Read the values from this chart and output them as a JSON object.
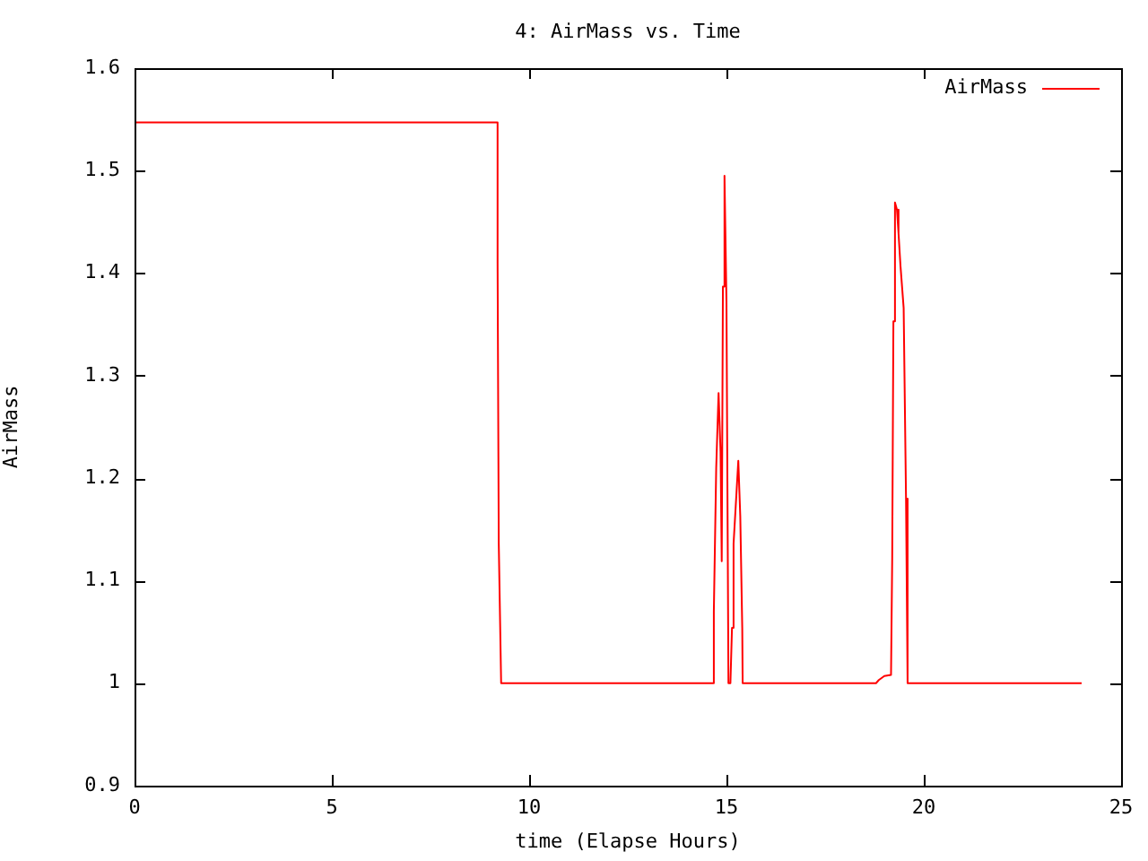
{
  "chart_data": {
    "type": "line",
    "title": "4: AirMass vs. Time",
    "xlabel": "time (Elapse Hours)",
    "ylabel": "AirMass",
    "xlim": [
      0,
      25
    ],
    "xticks": [
      0,
      5,
      10,
      15,
      20,
      25
    ],
    "ylim": [
      0.9,
      1.6
    ],
    "yticks": [
      0.9,
      1,
      1.1,
      1.2,
      1.3,
      1.4,
      1.5,
      1.6
    ],
    "grid": false,
    "legend": "top right",
    "marker": "none",
    "line_style": "solid",
    "series": [
      {
        "name": "AirMass",
        "color": "#ff0000",
        "x": [
          0,
          9.2,
          9.2,
          9.23,
          9.29,
          14.67,
          14.68,
          14.74,
          14.8,
          14.85,
          14.88,
          14.91,
          14.95,
          15.0,
          15.05,
          15.1,
          15.14,
          15.18,
          15.26,
          15.3,
          15.35,
          15.4,
          15.41,
          18.79,
          18.86,
          19.0,
          19.17,
          19.2,
          19.23,
          19.27,
          19.32,
          19.36,
          19.41,
          19.49,
          19.55,
          19.59,
          24
        ],
        "values": [
          1.547,
          1.547,
          1.41,
          1.136,
          1.0,
          1.0,
          1.07,
          1.21,
          1.283,
          1.226,
          1.119,
          1.387,
          1.495,
          1.372,
          1.0,
          1.0,
          1.054,
          1.136,
          1.19,
          1.217,
          1.163,
          1.054,
          1.0,
          1.0,
          1.003,
          1.007,
          1.008,
          1.122,
          1.353,
          1.469,
          1.462,
          1.439,
          1.407,
          1.366,
          1.18,
          1.0,
          1.0
        ]
      }
    ]
  }
}
